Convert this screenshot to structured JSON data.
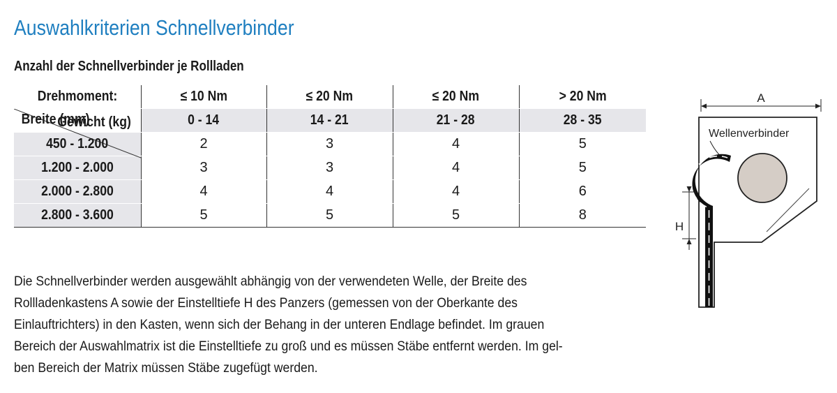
{
  "title": "Auswahlkriterien Schnellverbinder",
  "subtitle": "Anzahl der Schnellverbinder je Rollladen",
  "table": {
    "header_label": "Drehmoment:",
    "torque": [
      "≤ 10 Nm",
      "≤ 20 Nm",
      "≤ 20 Nm",
      "> 20 Nm"
    ],
    "weight_label": "Gewicht (kg)",
    "width_label": "Breite (mm)",
    "weights": [
      "0 - 14",
      "14 - 21",
      "21 - 28",
      "28 - 35"
    ],
    "rows": [
      {
        "width": "450 - 1.200",
        "values": [
          "2",
          "3",
          "4",
          "5"
        ]
      },
      {
        "width": "1.200 - 2.000",
        "values": [
          "3",
          "3",
          "4",
          "5"
        ]
      },
      {
        "width": "2.000 - 2.800",
        "values": [
          "4",
          "4",
          "4",
          "6"
        ]
      },
      {
        "width": "2.800 - 3.600",
        "values": [
          "5",
          "5",
          "5",
          "8"
        ]
      }
    ]
  },
  "description_lines": [
    "Die Schnellverbinder werden ausgewählt abhängig von der verwendeten Welle, der Breite des",
    "Rollladenkastens A sowie der Einstelltiefe H des Panzers (gemessen von der Oberkante des",
    "Einlauftrichters) in den Kasten, wenn sich der Behang in der unteren Endlage befindet. Im grauen",
    "Bereich der Auswahlmatrix ist die Einstelltiefe zu groß und es müssen Stäbe entfernt werden. Im gel-",
    "ben Bereich der Matrix müssen Stäbe zugefügt werden."
  ],
  "diagram": {
    "label_a": "A",
    "label_h": "H",
    "label_connector": "Wellenverbinder",
    "colors": {
      "shaft": "#d5cdc6",
      "curtain": "#111111"
    }
  }
}
